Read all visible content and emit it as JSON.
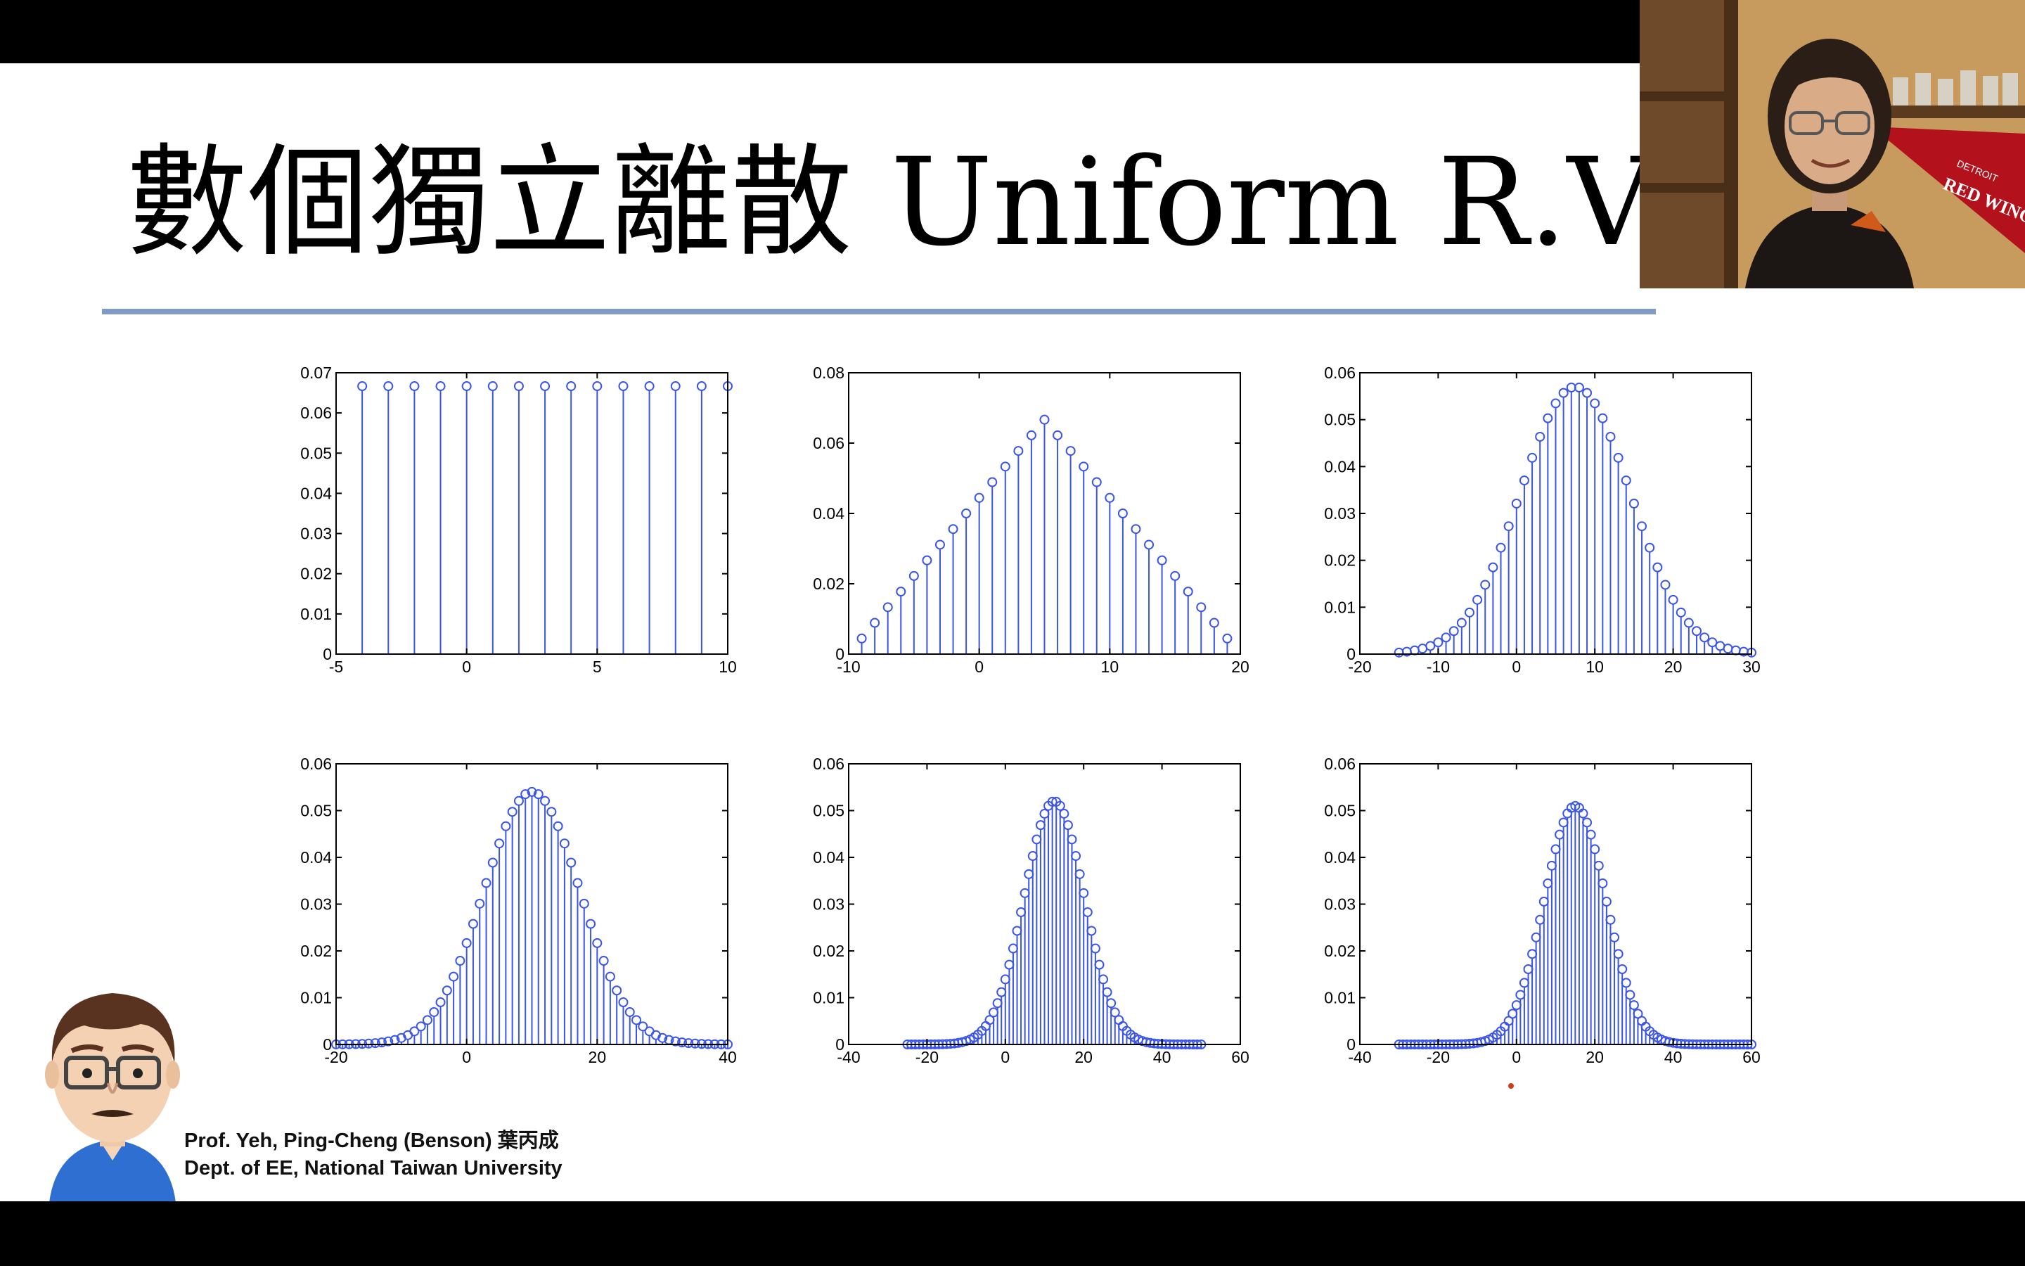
{
  "slide": {
    "title": "數個獨立離散 Uniform R.V. 和",
    "credits_line1": "Prof. Yeh, Ping-Cheng (Benson) 葉丙成",
    "credits_line2": "Dept. of EE,  National Taiwan University"
  },
  "colors": {
    "stem": "#3a55e8",
    "axis": "#000000",
    "rule": "#7f9cc8",
    "slide_bg": "#ffffff",
    "letterbox": "#000000"
  },
  "webcam": {
    "caption_pennant": "RED WINGS",
    "caption_small": "DETROIT"
  },
  "chart_data": [
    {
      "type": "stem",
      "x_range": [
        -4,
        10
      ],
      "pmf": "uniform",
      "xlim": [
        -5,
        10
      ],
      "ylim": [
        0,
        0.07
      ],
      "xticks": [
        -5,
        0,
        5,
        10
      ],
      "yticks": [
        0,
        0.01,
        0.02,
        0.03,
        0.04,
        0.05,
        0.06,
        0.07
      ],
      "xticklabels": [
        "-5",
        "0",
        "5",
        "10"
      ],
      "yticklabels": [
        "0",
        "0.01",
        "0.02",
        "0.03",
        "0.04",
        "0.05",
        "0.06",
        "0.07"
      ]
    },
    {
      "type": "stem",
      "x_range": [
        -9,
        19
      ],
      "pmf": "triangle",
      "xlim": [
        -10,
        20
      ],
      "ylim": [
        0,
        0.08
      ],
      "xticks": [
        -10,
        0,
        10,
        20
      ],
      "yticks": [
        0,
        0.02,
        0.04,
        0.06,
        0.08
      ],
      "xticklabels": [
        "-10",
        "0",
        "10",
        "20"
      ],
      "yticklabels": [
        "0",
        "0.02",
        "0.04",
        "0.06",
        "0.08"
      ]
    },
    {
      "type": "stem",
      "x_range": [
        -15,
        30
      ],
      "pmf": "bell",
      "peak": 0.057,
      "mean": 7.5,
      "sd": 7,
      "xlim": [
        -20,
        30
      ],
      "ylim": [
        0,
        0.06
      ],
      "xticks": [
        -20,
        -10,
        0,
        10,
        20,
        30
      ],
      "yticks": [
        0,
        0.01,
        0.02,
        0.03,
        0.04,
        0.05,
        0.06
      ],
      "xticklabels": [
        "-20",
        "-10",
        "0",
        "10",
        "20",
        "30"
      ],
      "yticklabels": [
        "0",
        "0.01",
        "0.02",
        "0.03",
        "0.04",
        "0.05",
        "0.06"
      ]
    },
    {
      "type": "stem",
      "x_range": [
        -20,
        40
      ],
      "pmf": "bell",
      "peak": 0.054,
      "mean": 10,
      "sd": 7.4,
      "xlim": [
        -20,
        40
      ],
      "ylim": [
        0,
        0.06
      ],
      "xticks": [
        -20,
        0,
        20,
        40
      ],
      "yticks": [
        0,
        0.01,
        0.02,
        0.03,
        0.04,
        0.05,
        0.06
      ],
      "xticklabels": [
        "-20",
        "0",
        "20",
        "40"
      ],
      "yticklabels": [
        "0",
        "0.01",
        "0.02",
        "0.03",
        "0.04",
        "0.05",
        "0.06"
      ]
    },
    {
      "type": "stem",
      "x_range": [
        -25,
        50
      ],
      "pmf": "bell",
      "peak": 0.052,
      "mean": 12.5,
      "sd": 7.7,
      "xlim": [
        -40,
        60
      ],
      "ylim": [
        0,
        0.06
      ],
      "xticks": [
        -40,
        -20,
        0,
        20,
        40,
        60
      ],
      "yticks": [
        0,
        0.01,
        0.02,
        0.03,
        0.04,
        0.05,
        0.06
      ],
      "xticklabels": [
        "-40",
        "-20",
        "0",
        "20",
        "40",
        "60"
      ],
      "yticklabels": [
        "0",
        "0.01",
        "0.02",
        "0.03",
        "0.04",
        "0.05",
        "0.06"
      ]
    },
    {
      "type": "stem",
      "x_range": [
        -30,
        60
      ],
      "pmf": "bell",
      "peak": 0.051,
      "mean": 15,
      "sd": 7.9,
      "xlim": [
        -40,
        60
      ],
      "ylim": [
        0,
        0.06
      ],
      "xticks": [
        -40,
        -20,
        0,
        20,
        40,
        60
      ],
      "yticks": [
        0,
        0.01,
        0.02,
        0.03,
        0.04,
        0.05,
        0.06
      ],
      "xticklabels": [
        "-40",
        "-20",
        "0",
        "20",
        "40",
        "60"
      ],
      "yticklabels": [
        "0",
        "0.01",
        "0.02",
        "0.03",
        "0.04",
        "0.05",
        "0.06"
      ]
    }
  ]
}
